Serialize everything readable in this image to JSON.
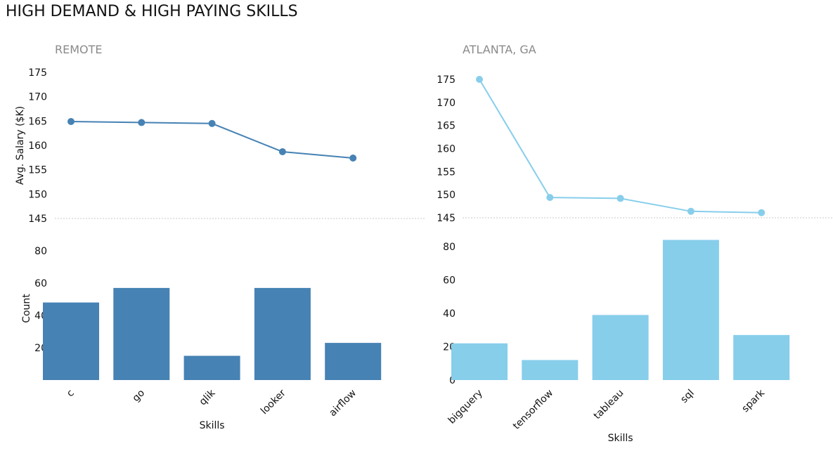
{
  "title": "HIGH DEMAND & HIGH PAYING SKILLS",
  "colors": {
    "remote": "#4682b4",
    "atlanta": "#87ceeb"
  },
  "chart_data": [
    {
      "id": "remote",
      "subtitle": "REMOTE",
      "xlabel": "Skills",
      "categories": [
        "c",
        "go",
        "qlik",
        "looker",
        "airflow"
      ],
      "line": {
        "type": "line",
        "ylabel": "Avg. Salary ($K)",
        "ylim": [
          145,
          175
        ],
        "yticks": [
          145,
          150,
          155,
          160,
          165,
          170,
          175
        ],
        "values": [
          164.9,
          164.7,
          164.5,
          158.7,
          157.4
        ]
      },
      "bar": {
        "type": "bar",
        "ylabel": "Count",
        "ylim": [
          0,
          85
        ],
        "yticks": [
          20,
          40,
          60,
          80
        ],
        "values": [
          48,
          57,
          15,
          57,
          23
        ]
      }
    },
    {
      "id": "atlanta",
      "subtitle": "ATLANTA, GA",
      "xlabel": "Skills",
      "categories": [
        "bigquery",
        "tensorflow",
        "tableau",
        "sql",
        "spark"
      ],
      "line": {
        "type": "line",
        "ylabel": "",
        "ylim": [
          145,
          175
        ],
        "yticks": [
          145,
          150,
          155,
          160,
          165,
          170,
          175
        ],
        "values": [
          175,
          149.4,
          149.2,
          146.4,
          146.1
        ]
      },
      "bar": {
        "type": "bar",
        "ylabel": "",
        "ylim": [
          0,
          85
        ],
        "yticks": [
          0,
          20,
          40,
          60,
          80
        ],
        "values": [
          22,
          12,
          39,
          84,
          27
        ]
      }
    }
  ]
}
